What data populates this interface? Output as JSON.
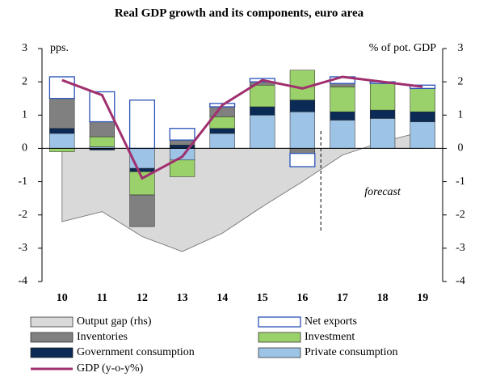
{
  "chart_data": {
    "type": "bar",
    "title": "Real GDP growth and its components, euro area",
    "y_label": "pps.",
    "y2_label": "% of pot. GDP",
    "annotation": "forecast",
    "categories": [
      "10",
      "11",
      "12",
      "13",
      "14",
      "15",
      "16",
      "17",
      "18",
      "19"
    ],
    "ylim": [
      -4,
      3
    ],
    "yticks": [
      -4,
      -3,
      -2,
      -1,
      0,
      1,
      2,
      3
    ],
    "y2lim": [
      -4,
      3
    ],
    "y2ticks": [
      -4,
      -3,
      -2,
      -1,
      0,
      1,
      2,
      3
    ],
    "series": [
      {
        "name": "Output gap (rhs)",
        "type": "area",
        "axis": "y2",
        "color": "#d9d9d9",
        "values": [
          -2.2,
          -1.9,
          -2.65,
          -3.1,
          -2.55,
          -1.75,
          -1.0,
          -0.2,
          0.2,
          0.5
        ]
      },
      {
        "name": "Net exports",
        "type": "bar",
        "style": "outline",
        "color": "#2952b8",
        "values": [
          0.65,
          0.9,
          1.45,
          0.35,
          0.1,
          0.1,
          -0.4,
          0.2,
          0.05,
          0.1
        ]
      },
      {
        "name": "Inventories",
        "type": "bar",
        "color": "#808080",
        "values": [
          0.9,
          0.45,
          -0.95,
          0.15,
          0.3,
          0.1,
          -0.15,
          0.1,
          0,
          0
        ]
      },
      {
        "name": "Investment",
        "type": "bar",
        "color": "#9bd16a",
        "values": [
          -0.1,
          0.3,
          -0.7,
          -0.5,
          0.35,
          0.65,
          0.9,
          0.75,
          0.8,
          0.7
        ]
      },
      {
        "name": "Government consumption",
        "type": "bar",
        "color": "#0b2a55",
        "values": [
          0.15,
          -0.05,
          -0.1,
          0.1,
          0.15,
          0.25,
          0.35,
          0.25,
          0.25,
          0.3
        ]
      },
      {
        "name": "Private consumption",
        "type": "bar",
        "color": "#9dc3e6",
        "values": [
          0.45,
          0.05,
          -0.6,
          -0.35,
          0.45,
          1.0,
          1.1,
          0.85,
          0.9,
          0.8
        ]
      },
      {
        "name": "GDP (y-o-y%)",
        "type": "line",
        "color": "#a0306e",
        "values": [
          2.05,
          1.6,
          -0.9,
          -0.25,
          1.3,
          2.05,
          1.8,
          2.15,
          2.0,
          1.85
        ]
      }
    ]
  }
}
